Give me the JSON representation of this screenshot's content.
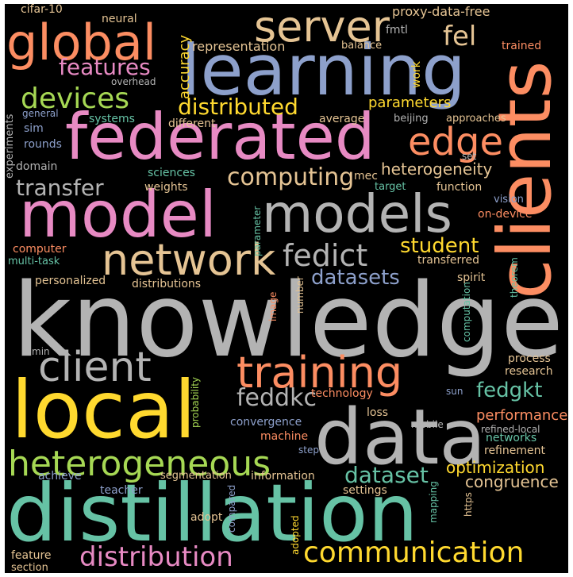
{
  "palette": {
    "background": "#000000",
    "salmon": "#FC8D62",
    "teal": "#66C2A5",
    "blue": "#8DA0CB",
    "pink": "#E78AC3",
    "green": "#A6D854",
    "yellow": "#FFD92F",
    "tan": "#E5C494",
    "gray": "#B3B3B3"
  },
  "words": {
    "knowledge": "knowledge",
    "distillation": "distillation",
    "local": "local",
    "data": "data",
    "model": "model",
    "federated": "federated",
    "learning": "learning",
    "clients": "clients",
    "models": "models",
    "network": "network",
    "global": "global",
    "server": "server",
    "training": "training",
    "client": "client",
    "heterogeneous": "heterogeneous",
    "communication": "communication",
    "distribution": "distribution",
    "edge": "edge",
    "devices": "devices",
    "fedict": "fedict",
    "fel": "fel",
    "feddkc": "feddkc",
    "fedgkt": "fedgkt",
    "dataset": "dataset",
    "computing": "computing",
    "distributed": "distributed",
    "transfer": "transfer",
    "features": "features",
    "student": "student",
    "datasets": "datasets",
    "heterogeneity": "heterogeneity",
    "optimization": "optimization",
    "congruence": "congruence",
    "performance": "performance",
    "parameters": "parameters",
    "accuracy": "accuracy",
    "representation": "representation",
    "proxy_data_free": "proxy-data-free",
    "cifar_10": "cifar-10",
    "neural": "neural",
    "fmtl": "fmtl",
    "balance": "balance",
    "trained": "trained",
    "work": "work",
    "overhead": "overhead",
    "general": "general",
    "experiments": "experiments",
    "systems": "systems",
    "average": "average",
    "beijing": "beijing",
    "approaches": "approaches",
    "sim": "sim",
    "rounds": "rounds",
    "different": "different",
    "set": "set",
    "domain": "domain",
    "sciences": "sciences",
    "weights": "weights",
    "mec": "mec",
    "target": "target",
    "function": "function",
    "vision": "vision",
    "on_device": "on-device",
    "computer": "computer",
    "multi_task": "multi-task",
    "parameter": "parameter",
    "transferred": "transferred",
    "personalized": "personalized",
    "distributions": "distributions",
    "spirit": "spirit",
    "image": "image",
    "number": "number",
    "theorem": "theorem",
    "computation": "computation",
    "min": "min",
    "probability": "probability",
    "process": "process",
    "research": "research",
    "technology": "technology",
    "sun": "sun",
    "convergence": "convergence",
    "loss": "loss",
    "mobile": "mobile",
    "refined_local": "refined-local",
    "machine": "machine",
    "networks": "networks",
    "refinement": "refinement",
    "step": "step",
    "achieve": "achieve",
    "segmentation": "segmentation",
    "information": "information",
    "teacher": "teacher",
    "settings": "settings",
    "compared": "compared",
    "mapping": "mapping",
    "https": "https",
    "adopt": "adopt",
    "adopted": "adopted",
    "feature": "feature",
    "section": "section"
  }
}
